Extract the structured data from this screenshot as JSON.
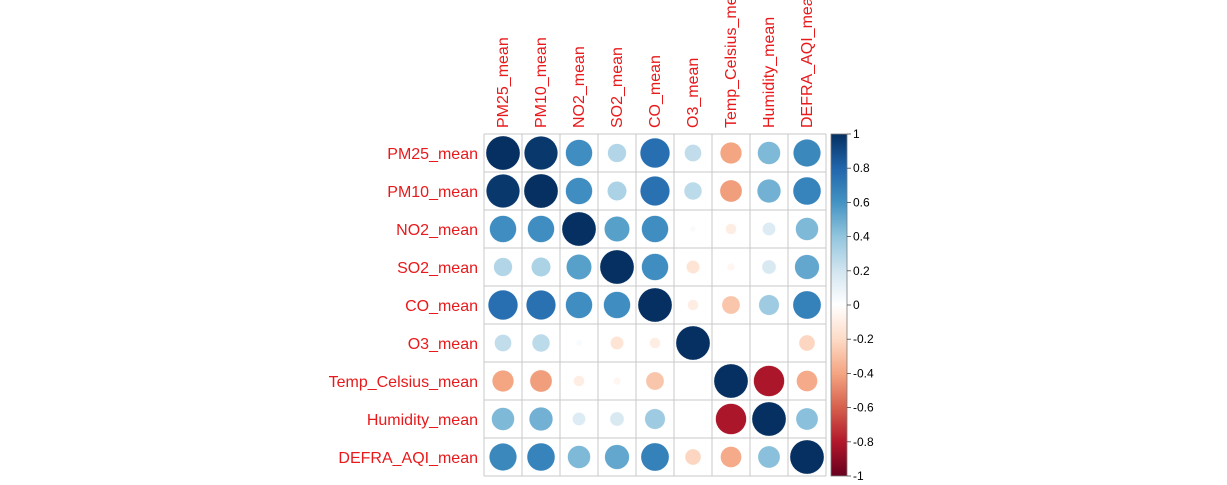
{
  "chart_data": {
    "type": "correlation-matrix",
    "variables": [
      "PM25_mean",
      "PM10_mean",
      "NO2_mean",
      "SO2_mean",
      "CO_mean",
      "O3_mean",
      "Temp_Celsius_mean",
      "Humidity_mean",
      "DEFRA_AQI_mean"
    ],
    "matrix": [
      [
        1.0,
        0.97,
        0.62,
        0.3,
        0.76,
        0.25,
        -0.4,
        0.45,
        0.65
      ],
      [
        0.97,
        1.0,
        0.62,
        0.32,
        0.75,
        0.27,
        -0.42,
        0.48,
        0.67
      ],
      [
        0.62,
        0.62,
        1.0,
        0.55,
        0.62,
        0.03,
        -0.1,
        0.15,
        0.45
      ],
      [
        0.3,
        0.32,
        0.55,
        1.0,
        0.62,
        -0.15,
        -0.05,
        0.17,
        0.52
      ],
      [
        0.76,
        0.75,
        0.62,
        0.62,
        1.0,
        -0.1,
        -0.28,
        0.36,
        0.68
      ],
      [
        0.25,
        0.27,
        0.03,
        -0.15,
        -0.1,
        1.0,
        0.0,
        0.0,
        -0.22
      ],
      [
        -0.4,
        -0.42,
        -0.1,
        -0.05,
        -0.28,
        0.0,
        1.0,
        -0.82,
        -0.38
      ],
      [
        0.45,
        0.48,
        0.15,
        0.17,
        0.36,
        0.0,
        -0.82,
        1.0,
        0.42
      ],
      [
        0.65,
        0.67,
        0.45,
        0.52,
        0.68,
        -0.22,
        -0.38,
        0.42,
        1.0
      ]
    ],
    "colorbar": {
      "range": [
        -1,
        1
      ],
      "tick_labels": [
        "1",
        "0.8",
        "0.6",
        "0.4",
        "0.2",
        "0",
        "-0.2",
        "-0.4",
        "-0.6",
        "-0.8",
        "-1"
      ]
    },
    "colors": {
      "label": "#e8191b",
      "grid": "#c8c8c8",
      "scale": [
        "#67001f",
        "#b2182b",
        "#d6604d",
        "#f4a582",
        "#fddbc7",
        "#ffffff",
        "#d1e5f0",
        "#92c5de",
        "#4393c3",
        "#2166ac",
        "#053061"
      ]
    }
  }
}
